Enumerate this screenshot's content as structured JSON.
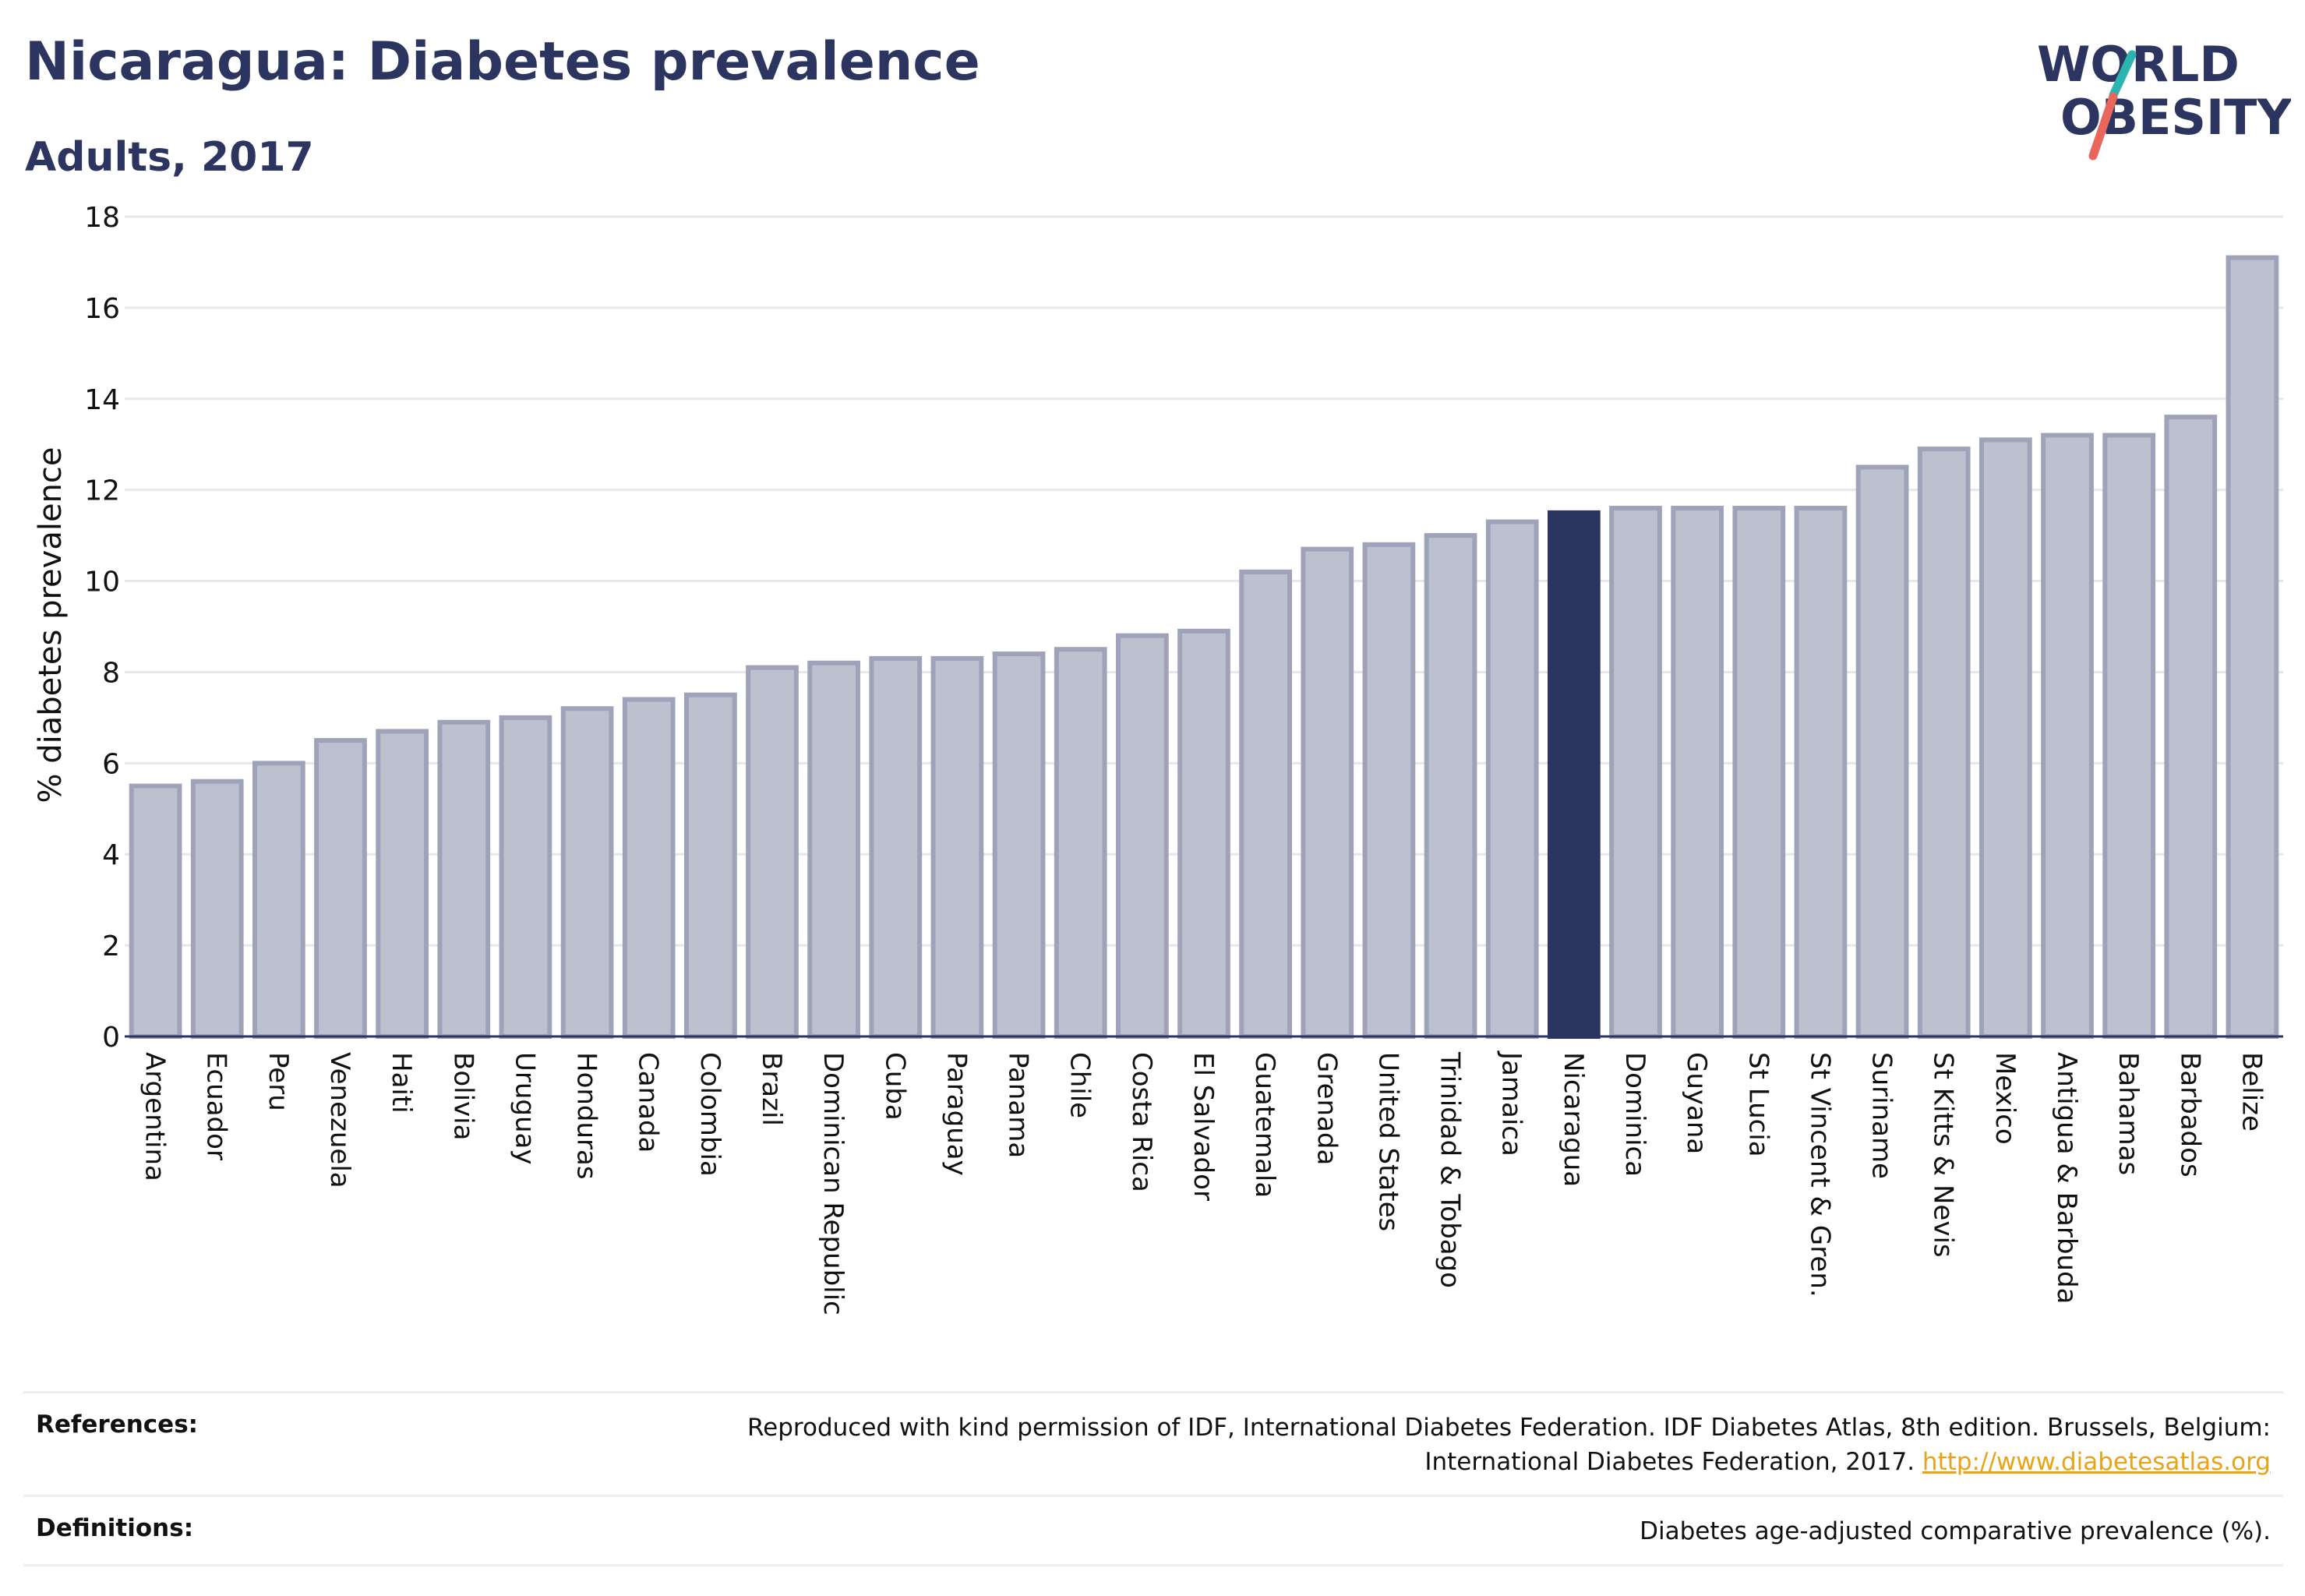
{
  "header": {
    "title": "Nicaragua: Diabetes prevalence",
    "subtitle": "Adults, 2017"
  },
  "logo": {
    "line1": "WORLD",
    "line2": "OBESITY",
    "text_color": "#2b3560",
    "slash_teal": "#2bb5b0",
    "slash_coral": "#e8665a"
  },
  "chart_data": {
    "type": "bar",
    "ylabel": "% diabetes prevalence",
    "ylim": [
      0,
      18
    ],
    "yticks": [
      0,
      2,
      4,
      6,
      8,
      10,
      12,
      14,
      16,
      18
    ],
    "grid": true,
    "highlight": "Nicaragua",
    "colors": {
      "bar": "#bcc0cf",
      "bar_border": "#9ea3ba",
      "highlight": "#2b3560"
    },
    "categories": [
      "Argentina",
      "Ecuador",
      "Peru",
      "Venezuela",
      "Haiti",
      "Bolivia",
      "Uruguay",
      "Honduras",
      "Canada",
      "Colombia",
      "Brazil",
      "Dominican Republic",
      "Cuba",
      "Paraguay",
      "Panama",
      "Chile",
      "Costa Rica",
      "El Salvador",
      "Guatemala",
      "Grenada",
      "United States",
      "Trinidad & Tobago",
      "Jamaica",
      "Nicaragua",
      "Dominica",
      "Guyana",
      "St Lucia",
      "St Vincent & Gren.",
      "Suriname",
      "St Kitts & Nevis",
      "Mexico",
      "Antigua & Barbuda",
      "Bahamas",
      "Barbados",
      "Belize"
    ],
    "values": [
      5.5,
      5.6,
      6.0,
      6.5,
      6.7,
      6.9,
      7.0,
      7.2,
      7.4,
      7.5,
      8.1,
      8.2,
      8.3,
      8.3,
      8.4,
      8.5,
      8.8,
      8.9,
      10.2,
      10.7,
      10.8,
      11.0,
      11.3,
      11.5,
      11.6,
      11.6,
      11.6,
      11.6,
      12.5,
      12.9,
      13.1,
      13.2,
      13.2,
      13.6,
      17.1
    ]
  },
  "footer": {
    "references_label": "References:",
    "references_line1": "Reproduced with kind permission of IDF, International Diabetes Federation. IDF Diabetes Atlas, 8th edition. Brussels, Belgium:",
    "references_line2": "International Diabetes Federation, 2017.",
    "references_link": "http://www.diabetesatlas.org",
    "definitions_label": "Definitions:",
    "definitions_text": "Diabetes age-adjusted comparative prevalence (%)."
  }
}
